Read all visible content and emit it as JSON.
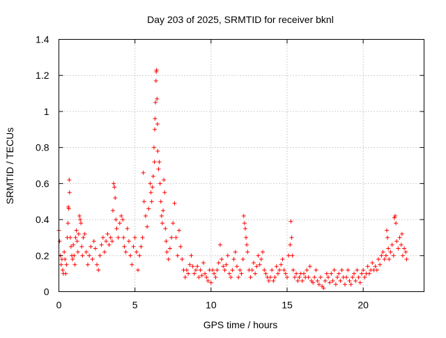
{
  "chart_data": {
    "type": "scatter",
    "title": "Day 203 of 2025, SRMTID for receiver bknl",
    "xlabel": "GPS time / hours",
    "ylabel": "SRMTID / TECUs",
    "xlim": [
      0,
      24
    ],
    "ylim": [
      0,
      1.4
    ],
    "xticks": [
      0,
      5,
      10,
      15,
      20
    ],
    "xtick_labels": [
      "0",
      "5",
      "10",
      "15",
      "20"
    ],
    "yticks": [
      0,
      0.2,
      0.4,
      0.6,
      0.8,
      1.0,
      1.2,
      1.4
    ],
    "ytick_labels": [
      "0",
      "0.2",
      "0.4",
      "0.6",
      "0.8",
      "1",
      "1.2",
      "1.4"
    ],
    "grid": true,
    "marker": "+",
    "marker_color": "#ff0000",
    "series": [
      {
        "name": "SRMTID",
        "points": [
          [
            0.0,
            0.34
          ],
          [
            0.05,
            0.28
          ],
          [
            0.1,
            0.2
          ],
          [
            0.15,
            0.15
          ],
          [
            0.2,
            0.18
          ],
          [
            0.25,
            0.12
          ],
          [
            0.3,
            0.1
          ],
          [
            0.35,
            0.22
          ],
          [
            0.4,
            0.18
          ],
          [
            0.45,
            0.1
          ],
          [
            0.5,
            0.15
          ],
          [
            0.55,
            0.3
          ],
          [
            0.6,
            0.38
          ],
          [
            0.62,
            0.47
          ],
          [
            0.65,
            0.46
          ],
          [
            0.68,
            0.62
          ],
          [
            0.7,
            0.55
          ],
          [
            0.75,
            0.3
          ],
          [
            0.8,
            0.25
          ],
          [
            0.85,
            0.2
          ],
          [
            0.9,
            0.18
          ],
          [
            0.95,
            0.26
          ],
          [
            1.0,
            0.2
          ],
          [
            1.05,
            0.15
          ],
          [
            1.1,
            0.3
          ],
          [
            1.15,
            0.34
          ],
          [
            1.2,
            0.28
          ],
          [
            1.25,
            0.22
          ],
          [
            1.3,
            0.32
          ],
          [
            1.35,
            0.42
          ],
          [
            1.4,
            0.4
          ],
          [
            1.45,
            0.38
          ],
          [
            1.5,
            0.25
          ],
          [
            1.55,
            0.2
          ],
          [
            1.6,
            0.3
          ],
          [
            1.7,
            0.32
          ],
          [
            1.8,
            0.22
          ],
          [
            1.9,
            0.15
          ],
          [
            2.0,
            0.2
          ],
          [
            2.1,
            0.25
          ],
          [
            2.2,
            0.18
          ],
          [
            2.3,
            0.28
          ],
          [
            2.4,
            0.24
          ],
          [
            2.5,
            0.15
          ],
          [
            2.6,
            0.12
          ],
          [
            2.7,
            0.2
          ],
          [
            2.8,
            0.26
          ],
          [
            2.9,
            0.3
          ],
          [
            3.0,
            0.22
          ],
          [
            3.1,
            0.28
          ],
          [
            3.2,
            0.32
          ],
          [
            3.3,
            0.26
          ],
          [
            3.4,
            0.3
          ],
          [
            3.5,
            0.28
          ],
          [
            3.55,
            0.45
          ],
          [
            3.6,
            0.6
          ],
          [
            3.65,
            0.58
          ],
          [
            3.7,
            0.52
          ],
          [
            3.75,
            0.4
          ],
          [
            3.8,
            0.35
          ],
          [
            3.9,
            0.3
          ],
          [
            4.0,
            0.38
          ],
          [
            4.1,
            0.42
          ],
          [
            4.2,
            0.4
          ],
          [
            4.25,
            0.3
          ],
          [
            4.3,
            0.25
          ],
          [
            4.4,
            0.22
          ],
          [
            4.5,
            0.35
          ],
          [
            4.6,
            0.28
          ],
          [
            4.7,
            0.2
          ],
          [
            4.8,
            0.15
          ],
          [
            4.9,
            0.25
          ],
          [
            5.0,
            0.3
          ],
          [
            5.1,
            0.22
          ],
          [
            5.2,
            0.12
          ],
          [
            5.3,
            0.2
          ],
          [
            5.4,
            0.25
          ],
          [
            5.5,
            0.3
          ],
          [
            5.55,
            0.66
          ],
          [
            5.6,
            0.5
          ],
          [
            5.7,
            0.42
          ],
          [
            5.8,
            0.36
          ],
          [
            5.9,
            0.46
          ],
          [
            6.0,
            0.6
          ],
          [
            6.05,
            0.55
          ],
          [
            6.1,
            0.5
          ],
          [
            6.15,
            0.58
          ],
          [
            6.2,
            0.64
          ],
          [
            6.25,
            0.8
          ],
          [
            6.28,
            0.72
          ],
          [
            6.3,
            0.9
          ],
          [
            6.32,
            0.96
          ],
          [
            6.35,
            1.05
          ],
          [
            6.38,
            1.17
          ],
          [
            6.4,
            1.22
          ],
          [
            6.42,
            1.23
          ],
          [
            6.45,
            1.07
          ],
          [
            6.48,
            0.93
          ],
          [
            6.5,
            0.78
          ],
          [
            6.55,
            0.68
          ],
          [
            6.6,
            0.72
          ],
          [
            6.65,
            0.6
          ],
          [
            6.7,
            0.5
          ],
          [
            6.75,
            0.42
          ],
          [
            6.8,
            0.38
          ],
          [
            6.85,
            0.45
          ],
          [
            6.9,
            0.62
          ],
          [
            6.95,
            0.55
          ],
          [
            7.0,
            0.35
          ],
          [
            7.05,
            0.28
          ],
          [
            7.1,
            0.22
          ],
          [
            7.2,
            0.18
          ],
          [
            7.3,
            0.24
          ],
          [
            7.4,
            0.3
          ],
          [
            7.5,
            0.38
          ],
          [
            7.6,
            0.49
          ],
          [
            7.7,
            0.3
          ],
          [
            7.8,
            0.2
          ],
          [
            7.9,
            0.34
          ],
          [
            8.0,
            0.25
          ],
          [
            8.1,
            0.18
          ],
          [
            8.2,
            0.12
          ],
          [
            8.3,
            0.08
          ],
          [
            8.4,
            0.12
          ],
          [
            8.5,
            0.1
          ],
          [
            8.6,
            0.15
          ],
          [
            8.7,
            0.2
          ],
          [
            8.8,
            0.14
          ],
          [
            8.9,
            0.1
          ],
          [
            9.0,
            0.12
          ],
          [
            9.1,
            0.14
          ],
          [
            9.2,
            0.08
          ],
          [
            9.3,
            0.12
          ],
          [
            9.4,
            0.09
          ],
          [
            9.5,
            0.16
          ],
          [
            9.6,
            0.1
          ],
          [
            9.7,
            0.08
          ],
          [
            9.8,
            0.06
          ],
          [
            9.9,
            0.12
          ],
          [
            10.0,
            0.05
          ],
          [
            10.1,
            0.12
          ],
          [
            10.2,
            0.1
          ],
          [
            10.3,
            0.08
          ],
          [
            10.4,
            0.12
          ],
          [
            10.5,
            0.16
          ],
          [
            10.6,
            0.26
          ],
          [
            10.7,
            0.18
          ],
          [
            10.8,
            0.14
          ],
          [
            10.9,
            0.12
          ],
          [
            11.0,
            0.15
          ],
          [
            11.1,
            0.2
          ],
          [
            11.2,
            0.1
          ],
          [
            11.3,
            0.08
          ],
          [
            11.4,
            0.12
          ],
          [
            11.5,
            0.18
          ],
          [
            11.6,
            0.22
          ],
          [
            11.7,
            0.14
          ],
          [
            11.8,
            0.08
          ],
          [
            11.9,
            0.12
          ],
          [
            12.0,
            0.1
          ],
          [
            12.1,
            0.18
          ],
          [
            12.15,
            0.42
          ],
          [
            12.2,
            0.38
          ],
          [
            12.25,
            0.35
          ],
          [
            12.3,
            0.3
          ],
          [
            12.35,
            0.26
          ],
          [
            12.4,
            0.22
          ],
          [
            12.5,
            0.12
          ],
          [
            12.6,
            0.08
          ],
          [
            12.7,
            0.12
          ],
          [
            12.8,
            0.16
          ],
          [
            12.9,
            0.1
          ],
          [
            13.0,
            0.14
          ],
          [
            13.1,
            0.2
          ],
          [
            13.2,
            0.15
          ],
          [
            13.3,
            0.18
          ],
          [
            13.4,
            0.22
          ],
          [
            13.5,
            0.12
          ],
          [
            13.6,
            0.1
          ],
          [
            13.7,
            0.08
          ],
          [
            13.8,
            0.06
          ],
          [
            13.9,
            0.08
          ],
          [
            14.0,
            0.12
          ],
          [
            14.1,
            0.06
          ],
          [
            14.2,
            0.08
          ],
          [
            14.3,
            0.14
          ],
          [
            14.4,
            0.1
          ],
          [
            14.5,
            0.12
          ],
          [
            14.6,
            0.15
          ],
          [
            14.7,
            0.18
          ],
          [
            14.8,
            0.12
          ],
          [
            14.9,
            0.1
          ],
          [
            15.0,
            0.08
          ],
          [
            15.1,
            0.2
          ],
          [
            15.2,
            0.26
          ],
          [
            15.25,
            0.39
          ],
          [
            15.3,
            0.3
          ],
          [
            15.35,
            0.2
          ],
          [
            15.4,
            0.12
          ],
          [
            15.5,
            0.08
          ],
          [
            15.6,
            0.1
          ],
          [
            15.7,
            0.06
          ],
          [
            15.8,
            0.08
          ],
          [
            15.9,
            0.1
          ],
          [
            16.0,
            0.06
          ],
          [
            16.1,
            0.1
          ],
          [
            16.2,
            0.08
          ],
          [
            16.3,
            0.12
          ],
          [
            16.4,
            0.08
          ],
          [
            16.5,
            0.14
          ],
          [
            16.6,
            0.06
          ],
          [
            16.7,
            0.05
          ],
          [
            16.8,
            0.08
          ],
          [
            16.9,
            0.12
          ],
          [
            17.0,
            0.06
          ],
          [
            17.1,
            0.04
          ],
          [
            17.2,
            0.08
          ],
          [
            17.3,
            0.03
          ],
          [
            17.4,
            0.02
          ],
          [
            17.5,
            0.06
          ],
          [
            17.6,
            0.1
          ],
          [
            17.7,
            0.08
          ],
          [
            17.8,
            0.05
          ],
          [
            17.9,
            0.1
          ],
          [
            18.0,
            0.06
          ],
          [
            18.1,
            0.12
          ],
          [
            18.2,
            0.04
          ],
          [
            18.3,
            0.08
          ],
          [
            18.4,
            0.1
          ],
          [
            18.5,
            0.06
          ],
          [
            18.6,
            0.12
          ],
          [
            18.7,
            0.08
          ],
          [
            18.8,
            0.04
          ],
          [
            18.9,
            0.08
          ],
          [
            19.0,
            0.12
          ],
          [
            19.1,
            0.06
          ],
          [
            19.2,
            0.04
          ],
          [
            19.3,
            0.08
          ],
          [
            19.4,
            0.1
          ],
          [
            19.5,
            0.06
          ],
          [
            19.6,
            0.12
          ],
          [
            19.7,
            0.08
          ],
          [
            19.8,
            0.05
          ],
          [
            19.9,
            0.1
          ],
          [
            20.0,
            0.12
          ],
          [
            20.1,
            0.08
          ],
          [
            20.2,
            0.1
          ],
          [
            20.3,
            0.14
          ],
          [
            20.4,
            0.1
          ],
          [
            20.5,
            0.12
          ],
          [
            20.6,
            0.16
          ],
          [
            20.7,
            0.12
          ],
          [
            20.8,
            0.14
          ],
          [
            20.9,
            0.12
          ],
          [
            21.0,
            0.18
          ],
          [
            21.1,
            0.15
          ],
          [
            21.2,
            0.2
          ],
          [
            21.3,
            0.22
          ],
          [
            21.4,
            0.18
          ],
          [
            21.5,
            0.2
          ],
          [
            21.55,
            0.34
          ],
          [
            21.6,
            0.3
          ],
          [
            21.65,
            0.24
          ],
          [
            21.7,
            0.18
          ],
          [
            21.8,
            0.22
          ],
          [
            21.9,
            0.26
          ],
          [
            22.0,
            0.2
          ],
          [
            22.05,
            0.41
          ],
          [
            22.1,
            0.42
          ],
          [
            22.15,
            0.38
          ],
          [
            22.2,
            0.28
          ],
          [
            22.3,
            0.24
          ],
          [
            22.4,
            0.3
          ],
          [
            22.5,
            0.26
          ],
          [
            22.55,
            0.32
          ],
          [
            22.6,
            0.2
          ],
          [
            22.7,
            0.24
          ],
          [
            22.8,
            0.22
          ],
          [
            22.85,
            0.18
          ]
        ]
      }
    ]
  }
}
